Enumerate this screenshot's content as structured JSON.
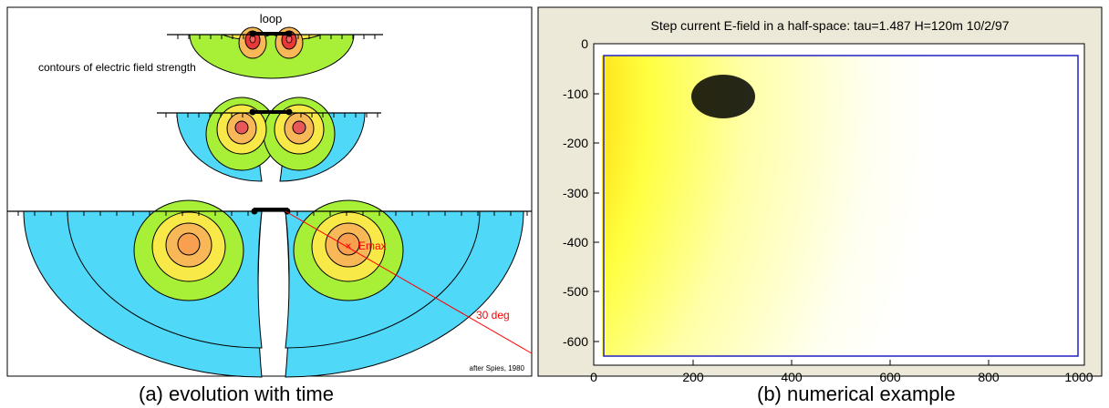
{
  "left_panel": {
    "loop_label": "loop",
    "subtitle": "contours of electric field strength",
    "emax_label": "Emax",
    "angle_label": "30 deg",
    "credit": "after Spies, 1980",
    "colors": {
      "outer": "#4fd8f8",
      "ring_green": "#a8f038",
      "ring_yellow": "#f8e848",
      "ring_orange": "#f8b858",
      "ring_core": "#f8a050",
      "ring_red": "#e83838",
      "annotation": "#ff0000"
    }
  },
  "right_panel": {
    "title": "Step current E-field in a half-space: tau=1.487  H=120m  10/2/97",
    "y_ticks": [
      "0",
      "-100",
      "-200",
      "-300",
      "-400",
      "-500",
      "-600"
    ],
    "x_ticks": [
      "0",
      "200",
      "400",
      "600",
      "800",
      "1000"
    ],
    "colors": {
      "background": "#ede9d8",
      "frame": "#2020c0",
      "hot": "#000000",
      "cold": "#ffffff"
    }
  },
  "captions": {
    "a": "(a) evolution with time",
    "b": "(b) numerical example"
  }
}
